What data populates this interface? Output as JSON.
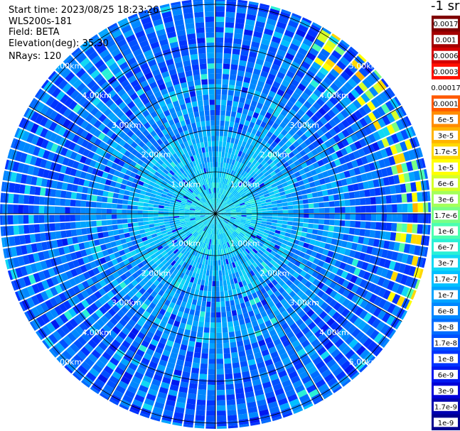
{
  "header": {
    "start_time": "Start time: 2023/08/25 18:23:26",
    "instrument": "WLS200s-181",
    "field": "Field: BETA",
    "elevation": "Elevation(deg): 35.30",
    "nrays": "NRays: 120"
  },
  "chart_data": {
    "type": "heatmap",
    "projection": "polar (PPI scan)",
    "nrays": 120,
    "range_rings_km": [
      1.0,
      2.0,
      3.0,
      4.0,
      5.0
    ],
    "range_labels": [
      "1.00km",
      "2.00km",
      "3.00km",
      "4.00km",
      "5.00km"
    ],
    "max_range_km": 5.2,
    "spokes_deg": [
      0,
      30,
      60,
      90,
      120,
      150,
      180,
      210,
      240,
      270,
      300,
      330
    ],
    "colorbar": {
      "title": "-1 sr",
      "ticks": [
        "0.0017",
        "0.001",
        "0.0006",
        "0.0003",
        "0.00017",
        "0.0001",
        "6e-5",
        "3e-5",
        "1.7e-5",
        "1e-5",
        "6e-6",
        "3e-6",
        "1.7e-6",
        "1e-6",
        "6e-7",
        "3e-7",
        "1.7e-7",
        "1e-7",
        "6e-8",
        "3e-8",
        "1.7e-8",
        "1e-8",
        "6e-9",
        "3e-9",
        "1.7e-9",
        "1e-9"
      ],
      "colors": [
        "#7f0000",
        "#a40000",
        "#d40000",
        "#ff1000",
        "#ffffff",
        "#ff5a00",
        "#ff8c00",
        "#ffb400",
        "#ffd800",
        "#ffff00",
        "#d6ff28",
        "#a4ff5a",
        "#78ff86",
        "#4cffb0",
        "#2af0d6",
        "#10d8f4",
        "#00c0ff",
        "#00a4ff",
        "#0088ff",
        "#006cff",
        "#0050ff",
        "#0034ff",
        "#0018f0",
        "#0000d8",
        "#0000b0",
        "#000090"
      ]
    },
    "enhanced_region": {
      "azimuth_deg": [
        30,
        115
      ],
      "range_km": [
        4.3,
        5.2
      ],
      "level": "1e-5 to 3e-5"
    },
    "typical_level": "1e-7 to 6e-8"
  }
}
